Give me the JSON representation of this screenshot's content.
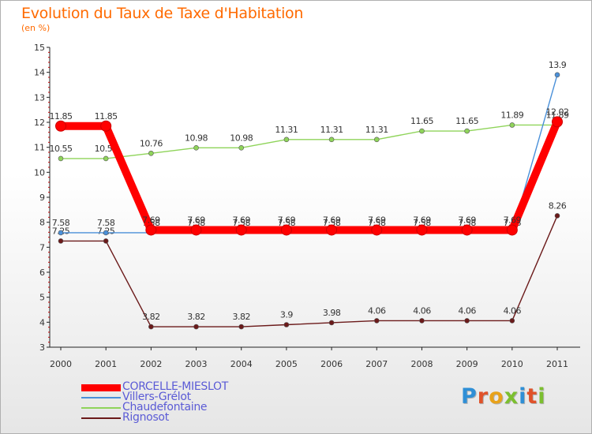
{
  "title": "Evolution du Taux de Taxe d'Habitation",
  "subtitle": "(en %)",
  "logo": [
    "P",
    "r",
    "o",
    "x",
    "i",
    "t",
    "i"
  ],
  "chart_data": {
    "type": "line",
    "title": "Evolution du Taux de Taxe d'Habitation",
    "ylabel": "(en %)",
    "xlabel": "",
    "x": [
      "2000",
      "2001",
      "2002",
      "2003",
      "2004",
      "2005",
      "2006",
      "2007",
      "2008",
      "2009",
      "2010",
      "2011"
    ],
    "ylim": [
      3,
      15
    ],
    "yticks": [
      "3",
      "4",
      "5",
      "6",
      "7",
      "8",
      "9",
      "10",
      "11",
      "12",
      "13",
      "14",
      "15"
    ],
    "grid": false,
    "legend_position": "bottom-left",
    "series": [
      {
        "name": "Rignosot",
        "color": "#6b1a1a",
        "values": [
          7.25,
          7.25,
          3.82,
          3.82,
          3.82,
          3.9,
          3.98,
          4.06,
          4.06,
          4.06,
          4.06,
          8.26
        ],
        "labels": [
          "7.25",
          "7.25",
          "3.82",
          "3.82",
          "3.82",
          "3.9",
          "3.98",
          "4.06",
          "4.06",
          "4.06",
          "4.06",
          "8.26"
        ]
      },
      {
        "name": "Chaudefontaine",
        "color": "#8fd45a",
        "values": [
          10.55,
          10.55,
          10.76,
          10.98,
          10.98,
          11.31,
          11.31,
          11.31,
          11.65,
          11.65,
          11.89,
          11.89
        ],
        "labels": [
          "10.55",
          "10.55",
          "10.76",
          "10.98",
          "10.98",
          "11.31",
          "11.31",
          "11.31",
          "11.65",
          "11.65",
          "11.89",
          "11.89"
        ]
      },
      {
        "name": "Villers-Grélot",
        "color": "#4a90d9",
        "values": [
          7.58,
          7.58,
          7.58,
          7.58,
          7.58,
          7.58,
          7.58,
          7.58,
          7.58,
          7.58,
          7.58,
          13.9
        ],
        "labels": [
          "7.58",
          "7.58",
          "7.58",
          "7.58",
          "7.58",
          "7.58",
          "7.58",
          "7.58",
          "7.58",
          "7.58",
          "7.58",
          "13.9"
        ]
      },
      {
        "name": "CORCELLE-MIESLOT",
        "color": "#ff0000",
        "values": [
          11.85,
          11.85,
          7.69,
          7.69,
          7.69,
          7.69,
          7.69,
          7.69,
          7.69,
          7.69,
          7.69,
          12.02
        ],
        "labels": [
          "11.85",
          "11.85",
          "7.69",
          "7.69",
          "7.69",
          "7.69",
          "7.69",
          "7.69",
          "7.69",
          "7.69",
          "7.69",
          "12.02"
        ]
      }
    ],
    "legend_order": [
      "CORCELLE-MIESLOT",
      "Villers-Grélot",
      "Chaudefontaine",
      "Rignosot"
    ]
  }
}
